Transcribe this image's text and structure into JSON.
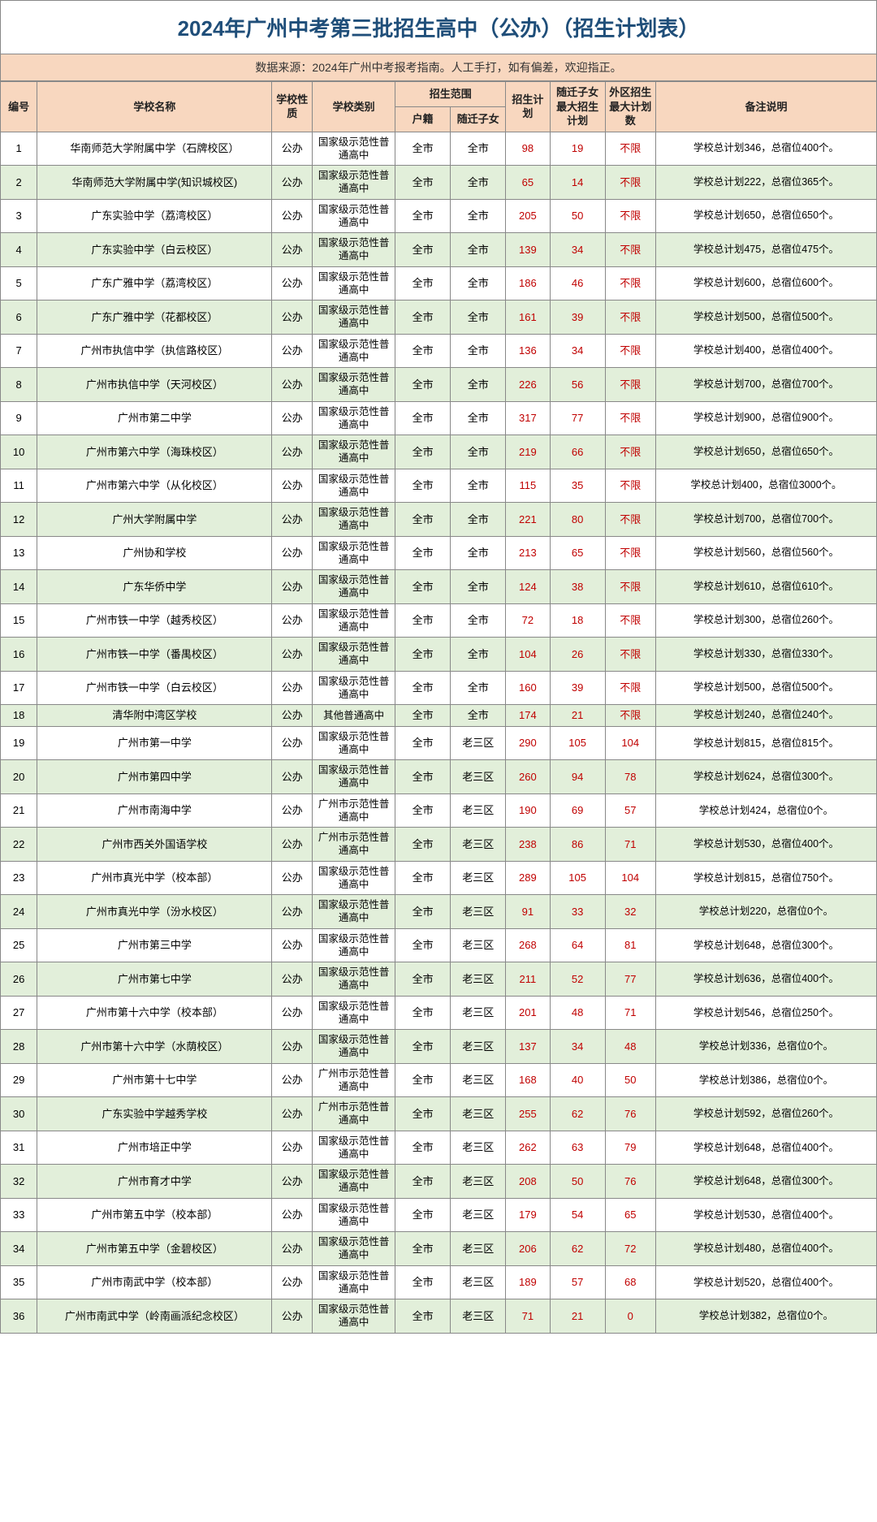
{
  "title": "2024年广州中考第三批招生高中（公办）（招生计划表）",
  "source_note": "数据来源：2024年广州中考报考指南。人工手打，如有偏差，欢迎指正。",
  "colors": {
    "title_text": "#1f4e79",
    "header_bg": "#f8d7bf",
    "row_even_bg": "#e2efda",
    "row_odd_bg": "#ffffff",
    "border": "#888888",
    "red_text": "#c00000"
  },
  "columns": {
    "id": "编号",
    "name": "学校名称",
    "nature": "学校性质",
    "type": "学校类别",
    "scope_group": "招生范围",
    "scope_hj": "户籍",
    "scope_sq": "随迁子女",
    "plan": "招生计划",
    "sq_max": "随迁子女最大招生计划",
    "wq_max": "外区招生最大计划数",
    "note": "备注说明"
  },
  "common": {
    "nature": "公办",
    "type_a": "国家级示范性普通高中",
    "type_b": "广州市示范性普通高中",
    "type_c": "其他普通高中",
    "scope_all": "全市",
    "scope_l3": "老三区",
    "unlimited": "不限"
  },
  "rows": [
    {
      "id": 1,
      "name": "华南师范大学附属中学（石牌校区）",
      "type": "a",
      "hj": "all",
      "sq": "all",
      "plan": 98,
      "sqmax": 19,
      "wq": "不限",
      "note": "学校总计划346，总宿位400个。"
    },
    {
      "id": 2,
      "name": "华南师范大学附属中学(知识城校区)",
      "type": "a",
      "hj": "all",
      "sq": "all",
      "plan": 65,
      "sqmax": 14,
      "wq": "不限",
      "note": "学校总计划222，总宿位365个。"
    },
    {
      "id": 3,
      "name": "广东实验中学（荔湾校区）",
      "type": "a",
      "hj": "all",
      "sq": "all",
      "plan": 205,
      "sqmax": 50,
      "wq": "不限",
      "note": "学校总计划650，总宿位650个。"
    },
    {
      "id": 4,
      "name": "广东实验中学（白云校区）",
      "type": "a",
      "hj": "all",
      "sq": "all",
      "plan": 139,
      "sqmax": 34,
      "wq": "不限",
      "note": "学校总计划475，总宿位475个。"
    },
    {
      "id": 5,
      "name": "广东广雅中学（荔湾校区）",
      "type": "a",
      "hj": "all",
      "sq": "all",
      "plan": 186,
      "sqmax": 46,
      "wq": "不限",
      "note": "学校总计划600，总宿位600个。"
    },
    {
      "id": 6,
      "name": "广东广雅中学（花都校区）",
      "type": "a",
      "hj": "all",
      "sq": "all",
      "plan": 161,
      "sqmax": 39,
      "wq": "不限",
      "note": "学校总计划500，总宿位500个。"
    },
    {
      "id": 7,
      "name": "广州市执信中学（执信路校区）",
      "type": "a",
      "hj": "all",
      "sq": "all",
      "plan": 136,
      "sqmax": 34,
      "wq": "不限",
      "note": "学校总计划400，总宿位400个。"
    },
    {
      "id": 8,
      "name": "广州市执信中学（天河校区）",
      "type": "a",
      "hj": "all",
      "sq": "all",
      "plan": 226,
      "sqmax": 56,
      "wq": "不限",
      "note": "学校总计划700，总宿位700个。"
    },
    {
      "id": 9,
      "name": "广州市第二中学",
      "type": "a",
      "hj": "all",
      "sq": "all",
      "plan": 317,
      "sqmax": 77,
      "wq": "不限",
      "note": "学校总计划900，总宿位900个。"
    },
    {
      "id": 10,
      "name": "广州市第六中学（海珠校区）",
      "type": "a",
      "hj": "all",
      "sq": "all",
      "plan": 219,
      "sqmax": 66,
      "wq": "不限",
      "note": "学校总计划650，总宿位650个。"
    },
    {
      "id": 11,
      "name": "广州市第六中学（从化校区）",
      "type": "a",
      "hj": "all",
      "sq": "all",
      "plan": 115,
      "sqmax": 35,
      "wq": "不限",
      "note": "学校总计划400，总宿位3000个。"
    },
    {
      "id": 12,
      "name": "广州大学附属中学",
      "type": "a",
      "hj": "all",
      "sq": "all",
      "plan": 221,
      "sqmax": 80,
      "wq": "不限",
      "note": "学校总计划700，总宿位700个。"
    },
    {
      "id": 13,
      "name": "广州协和学校",
      "type": "a",
      "hj": "all",
      "sq": "all",
      "plan": 213,
      "sqmax": 65,
      "wq": "不限",
      "note": "学校总计划560，总宿位560个。"
    },
    {
      "id": 14,
      "name": "广东华侨中学",
      "type": "a",
      "hj": "all",
      "sq": "all",
      "plan": 124,
      "sqmax": 38,
      "wq": "不限",
      "note": "学校总计划610，总宿位610个。"
    },
    {
      "id": 15,
      "name": "广州市铁一中学（越秀校区）",
      "type": "a",
      "hj": "all",
      "sq": "all",
      "plan": 72,
      "sqmax": 18,
      "wq": "不限",
      "note": "学校总计划300，总宿位260个。"
    },
    {
      "id": 16,
      "name": "广州市铁一中学（番禺校区）",
      "type": "a",
      "hj": "all",
      "sq": "all",
      "plan": 104,
      "sqmax": 26,
      "wq": "不限",
      "note": "学校总计划330，总宿位330个。"
    },
    {
      "id": 17,
      "name": "广州市铁一中学（白云校区）",
      "type": "a",
      "hj": "all",
      "sq": "all",
      "plan": 160,
      "sqmax": 39,
      "wq": "不限",
      "note": "学校总计划500，总宿位500个。"
    },
    {
      "id": 18,
      "name": "清华附中湾区学校",
      "type": "c",
      "hj": "all",
      "sq": "all",
      "plan": 174,
      "sqmax": 21,
      "wq": "不限",
      "note": "学校总计划240，总宿位240个。"
    },
    {
      "id": 19,
      "name": "广州市第一中学",
      "type": "a",
      "hj": "all",
      "sq": "l3",
      "plan": 290,
      "sqmax": 105,
      "wq": "104",
      "note": "学校总计划815，总宿位815个。"
    },
    {
      "id": 20,
      "name": "广州市第四中学",
      "type": "a",
      "hj": "all",
      "sq": "l3",
      "plan": 260,
      "sqmax": 94,
      "wq": "78",
      "note": "学校总计划624，总宿位300个。"
    },
    {
      "id": 21,
      "name": "广州市南海中学",
      "type": "b",
      "hj": "all",
      "sq": "l3",
      "plan": 190,
      "sqmax": 69,
      "wq": "57",
      "note": "学校总计划424，总宿位0个。"
    },
    {
      "id": 22,
      "name": "广州市西关外国语学校",
      "type": "b",
      "hj": "all",
      "sq": "l3",
      "plan": 238,
      "sqmax": 86,
      "wq": "71",
      "note": "学校总计划530，总宿位400个。"
    },
    {
      "id": 23,
      "name": "广州市真光中学（校本部）",
      "type": "a",
      "hj": "all",
      "sq": "l3",
      "plan": 289,
      "sqmax": 105,
      "wq": "104",
      "note": "学校总计划815，总宿位750个。"
    },
    {
      "id": 24,
      "name": "广州市真光中学（汾水校区）",
      "type": "a",
      "hj": "all",
      "sq": "l3",
      "plan": 91,
      "sqmax": 33,
      "wq": "32",
      "note": "学校总计划220，总宿位0个。"
    },
    {
      "id": 25,
      "name": "广州市第三中学",
      "type": "a",
      "hj": "all",
      "sq": "l3",
      "plan": 268,
      "sqmax": 64,
      "wq": "81",
      "note": "学校总计划648，总宿位300个。"
    },
    {
      "id": 26,
      "name": "广州市第七中学",
      "type": "a",
      "hj": "all",
      "sq": "l3",
      "plan": 211,
      "sqmax": 52,
      "wq": "77",
      "note": "学校总计划636，总宿位400个。"
    },
    {
      "id": 27,
      "name": "广州市第十六中学（校本部）",
      "type": "a",
      "hj": "all",
      "sq": "l3",
      "plan": 201,
      "sqmax": 48,
      "wq": "71",
      "note": "学校总计划546，总宿位250个。"
    },
    {
      "id": 28,
      "name": "广州市第十六中学（水荫校区）",
      "type": "a",
      "hj": "all",
      "sq": "l3",
      "plan": 137,
      "sqmax": 34,
      "wq": "48",
      "note": "学校总计划336，总宿位0个。"
    },
    {
      "id": 29,
      "name": "广州市第十七中学",
      "type": "b",
      "hj": "all",
      "sq": "l3",
      "plan": 168,
      "sqmax": 40,
      "wq": "50",
      "note": "学校总计划386，总宿位0个。"
    },
    {
      "id": 30,
      "name": "广东实验中学越秀学校",
      "type": "b",
      "hj": "all",
      "sq": "l3",
      "plan": 255,
      "sqmax": 62,
      "wq": "76",
      "note": "学校总计划592，总宿位260个。"
    },
    {
      "id": 31,
      "name": "广州市培正中学",
      "type": "a",
      "hj": "all",
      "sq": "l3",
      "plan": 262,
      "sqmax": 63,
      "wq": "79",
      "note": "学校总计划648，总宿位400个。"
    },
    {
      "id": 32,
      "name": "广州市育才中学",
      "type": "a",
      "hj": "all",
      "sq": "l3",
      "plan": 208,
      "sqmax": 50,
      "wq": "76",
      "note": "学校总计划648，总宿位300个。"
    },
    {
      "id": 33,
      "name": "广州市第五中学（校本部）",
      "type": "a",
      "hj": "all",
      "sq": "l3",
      "plan": 179,
      "sqmax": 54,
      "wq": "65",
      "note": "学校总计划530，总宿位400个。"
    },
    {
      "id": 34,
      "name": "广州市第五中学（金碧校区）",
      "type": "a",
      "hj": "all",
      "sq": "l3",
      "plan": 206,
      "sqmax": 62,
      "wq": "72",
      "note": "学校总计划480，总宿位400个。"
    },
    {
      "id": 35,
      "name": "广州市南武中学（校本部）",
      "type": "a",
      "hj": "all",
      "sq": "l3",
      "plan": 189,
      "sqmax": 57,
      "wq": "68",
      "note": "学校总计划520，总宿位400个。"
    },
    {
      "id": 36,
      "name": "广州市南武中学（岭南画派纪念校区）",
      "type": "a",
      "hj": "all",
      "sq": "l3",
      "plan": 71,
      "sqmax": 21,
      "wq": "0",
      "note": "学校总计划382，总宿位0个。"
    }
  ]
}
